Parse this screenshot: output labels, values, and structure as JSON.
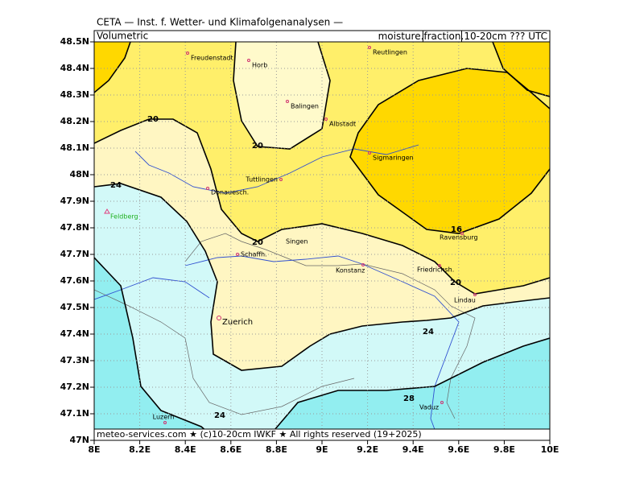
{
  "header": {
    "title": "CETA — Inst. f. Wetter- und Klimafolgenanalysen —",
    "left_label": "Volumetric",
    "right_label": {
      "prefix": "moisture.",
      "boxed": "fraction",
      "suffix": ".10-20cm ??? UTC"
    }
  },
  "footer": "meteo-services.com ★ (c)10-20cm IWKF ★ All rights reserved (19+2025)",
  "axes": {
    "xticks": [
      {
        "value": 8,
        "label": "8E"
      },
      {
        "value": 8.2,
        "label": "8.2E"
      },
      {
        "value": 8.4,
        "label": "8.4E"
      },
      {
        "value": 8.6,
        "label": "8.6E"
      },
      {
        "value": 8.8,
        "label": "8.8E"
      },
      {
        "value": 9,
        "label": "9E"
      },
      {
        "value": 9.2,
        "label": "9.2E"
      },
      {
        "value": 9.4,
        "label": "9.4E"
      },
      {
        "value": 9.6,
        "label": "9.6E"
      },
      {
        "value": 9.8,
        "label": "9.8E"
      },
      {
        "value": 10,
        "label": "10E"
      }
    ],
    "yticks": [
      {
        "value": 48.5,
        "label": "48.5N"
      },
      {
        "value": 48.4,
        "label": "48.4N"
      },
      {
        "value": 48.3,
        "label": "48.3N"
      },
      {
        "value": 48.2,
        "label": "48.2N"
      },
      {
        "value": 48.1,
        "label": "48.1N"
      },
      {
        "value": 48,
        "label": "48N"
      },
      {
        "value": 47.9,
        "label": "47.9N"
      },
      {
        "value": 47.8,
        "label": "47.8N"
      },
      {
        "value": 47.7,
        "label": "47.7N"
      },
      {
        "value": 47.6,
        "label": "47.6N"
      },
      {
        "value": 47.5,
        "label": "47.5N"
      },
      {
        "value": 47.4,
        "label": "47.4N"
      },
      {
        "value": 47.3,
        "label": "47.3N"
      },
      {
        "value": 47.2,
        "label": "47.2N"
      },
      {
        "value": 47.1,
        "label": "47.1N"
      },
      {
        "value": 47,
        "label": "47N"
      }
    ]
  },
  "cities": [
    "Freudenstadt",
    "Horb",
    "Balingen",
    "Albstadt",
    "Reutlingen",
    "Sigmaringen",
    "Tuttlingen",
    "Donauesch.",
    "Feldberg",
    "Singen",
    "Schaffh.",
    "Konstanz",
    "Friedrichsh.",
    "Ravensburg",
    "Lindau",
    "Zuerich",
    "Luzern",
    "Vaduz"
  ],
  "contour_labels": [
    20,
    20,
    24,
    20,
    16,
    20,
    24,
    28,
    24
  ]
}
